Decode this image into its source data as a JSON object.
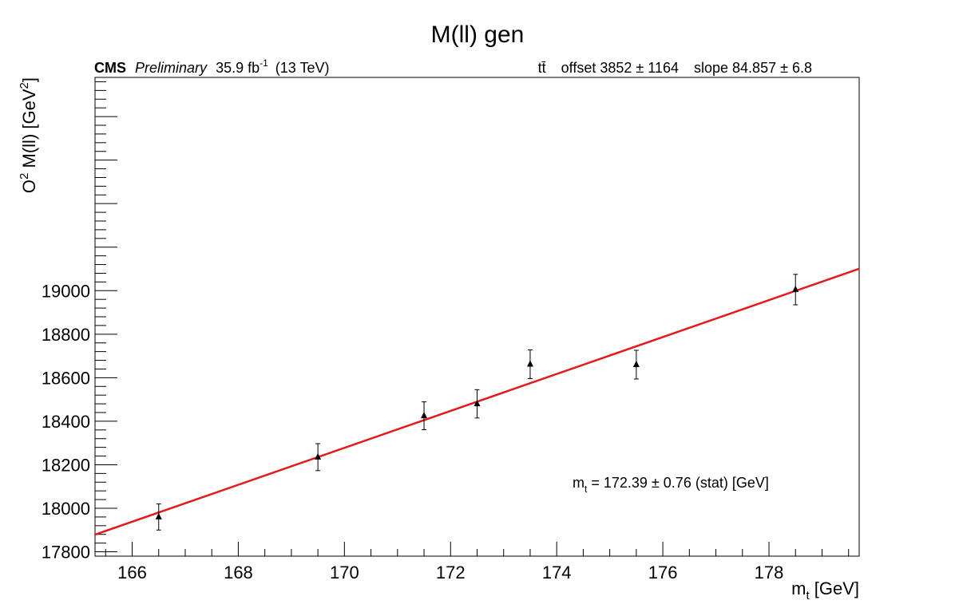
{
  "chart_data": {
    "type": "scatter",
    "title": "M(ll) gen",
    "header_left": {
      "experiment": "CMS",
      "status": "Preliminary",
      "lumi_value": "35.9 fb",
      "lumi_exponent": "-1",
      "energy": "(13 TeV)"
    },
    "header_right": {
      "process": "tt̄",
      "offset_text": "offset 3852 ± 1164",
      "slope_text": "slope 84.857 ± 6.8"
    },
    "xlabel": {
      "main": "m",
      "sub": "t",
      "rest": " [GeV]"
    },
    "ylabel": {
      "main": "O",
      "sup": "2",
      "mid": " M(ll) [GeV",
      "sup2": "2",
      "end": "]"
    },
    "annotation": {
      "main": "m",
      "sub": "t",
      "rest": " = 172.39 ± 0.76 (stat) [GeV]"
    },
    "xlim": [
      165.3,
      179.7
    ],
    "ylim": [
      17780,
      19980
    ],
    "x_ticks": [
      166,
      168,
      170,
      172,
      174,
      176,
      178
    ],
    "y_ticks": [
      17800,
      18000,
      18200,
      18400,
      18600,
      18800,
      19000
    ],
    "series": [
      {
        "marker": "triangle",
        "points": [
          {
            "x": 166.5,
            "y": 17960,
            "err": 60
          },
          {
            "x": 169.5,
            "y": 18235,
            "err": 62
          },
          {
            "x": 171.5,
            "y": 18425,
            "err": 64
          },
          {
            "x": 172.5,
            "y": 18480,
            "err": 65
          },
          {
            "x": 173.5,
            "y": 18662,
            "err": 66
          },
          {
            "x": 175.5,
            "y": 18660,
            "err": 66
          },
          {
            "x": 178.5,
            "y": 19005,
            "err": 70
          }
        ]
      }
    ],
    "fit": {
      "offset": 3852,
      "slope": 84.857,
      "x_range": [
        165.3,
        179.7
      ]
    },
    "colors": {
      "fit_line": "#e31a1c",
      "markers": "#000000",
      "axes": "#000000"
    }
  }
}
